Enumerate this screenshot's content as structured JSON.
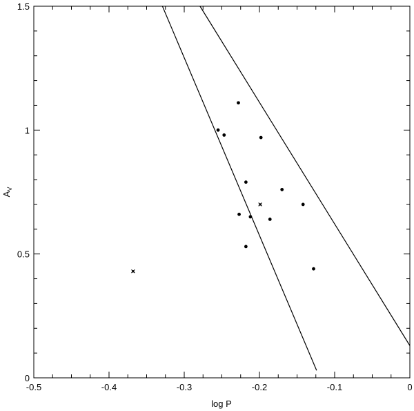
{
  "chart_data": {
    "type": "scatter",
    "xlabel": "log P",
    "ylabel_main": "A",
    "ylabel_sub": "V",
    "xlim": [
      -0.5,
      0
    ],
    "ylim": [
      0,
      1.5
    ],
    "grid": false,
    "x_ticks": [
      {
        "value": -0.5,
        "label": "-0.5"
      },
      {
        "value": -0.4,
        "label": "-0.4"
      },
      {
        "value": -0.3,
        "label": "-0.3"
      },
      {
        "value": -0.2,
        "label": "-0.2"
      },
      {
        "value": -0.1,
        "label": "-0.1"
      },
      {
        "value": 0,
        "label": "0"
      }
    ],
    "y_ticks": [
      {
        "value": 0,
        "label": "0"
      },
      {
        "value": 0.5,
        "label": "0.5"
      },
      {
        "value": 1,
        "label": "1"
      },
      {
        "value": 1.5,
        "label": "1.5"
      }
    ],
    "lines": [
      {
        "points": [
          [
            -0.329,
            1.5
          ],
          [
            -0.124,
            0.03
          ]
        ]
      },
      {
        "points": [
          [
            -0.279,
            1.5
          ],
          [
            0,
            0.13
          ]
        ]
      }
    ],
    "series": [
      {
        "marker": "dot",
        "points": [
          {
            "x": -0.228,
            "y": 1.11
          },
          {
            "x": -0.255,
            "y": 1.0
          },
          {
            "x": -0.247,
            "y": 0.98
          },
          {
            "x": -0.198,
            "y": 0.97
          },
          {
            "x": -0.218,
            "y": 0.79
          },
          {
            "x": -0.17,
            "y": 0.76
          },
          {
            "x": -0.142,
            "y": 0.7
          },
          {
            "x": -0.227,
            "y": 0.66
          },
          {
            "x": -0.212,
            "y": 0.65
          },
          {
            "x": -0.186,
            "y": 0.64
          },
          {
            "x": -0.218,
            "y": 0.53
          },
          {
            "x": -0.128,
            "y": 0.44
          }
        ]
      },
      {
        "marker": "cross",
        "points": [
          {
            "x": -0.199,
            "y": 0.7
          },
          {
            "x": -0.368,
            "y": 0.43
          }
        ]
      }
    ]
  }
}
